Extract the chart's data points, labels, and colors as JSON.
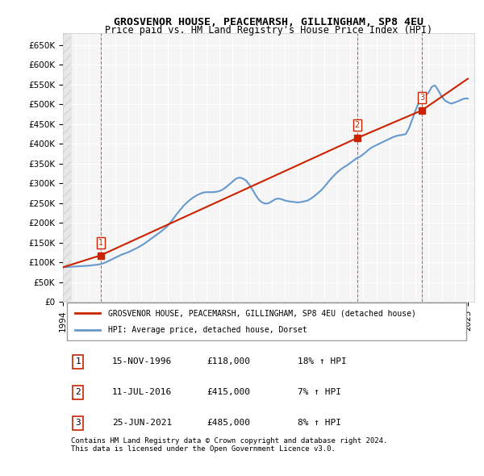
{
  "title": "GROSVENOR HOUSE, PEACEMARSH, GILLINGHAM, SP8 4EU",
  "subtitle": "Price paid vs. HM Land Registry's House Price Index (HPI)",
  "xlabel": "",
  "ylabel": "",
  "ylim": [
    0,
    680000
  ],
  "xlim_start": 1994.0,
  "xlim_end": 2025.5,
  "yticks": [
    0,
    50000,
    100000,
    150000,
    200000,
    250000,
    300000,
    350000,
    400000,
    450000,
    500000,
    550000,
    600000,
    650000
  ],
  "ytick_labels": [
    "£0",
    "£50K",
    "£100K",
    "£150K",
    "£200K",
    "£250K",
    "£300K",
    "£350K",
    "£400K",
    "£450K",
    "£500K",
    "£550K",
    "£600K",
    "£650K"
  ],
  "xticks": [
    1994,
    1995,
    1996,
    1997,
    1998,
    1999,
    2000,
    2001,
    2002,
    2003,
    2004,
    2005,
    2006,
    2007,
    2008,
    2009,
    2010,
    2011,
    2012,
    2013,
    2014,
    2015,
    2016,
    2017,
    2018,
    2019,
    2020,
    2021,
    2022,
    2023,
    2024,
    2025
  ],
  "sale_dates": [
    1996.877,
    2016.527,
    2021.479
  ],
  "sale_prices": [
    118000,
    415000,
    485000
  ],
  "sale_labels": [
    "1",
    "2",
    "3"
  ],
  "hpi_color": "#6699cc",
  "sale_color": "#cc2200",
  "marker_color": "#cc2200",
  "background_plot": "#f5f5f5",
  "grid_color": "#ffffff",
  "legend_label_sale": "GROSVENOR HOUSE, PEACEMARSH, GILLINGHAM, SP8 4EU (detached house)",
  "legend_label_hpi": "HPI: Average price, detached house, Dorset",
  "table_entries": [
    {
      "num": "1",
      "date": "15-NOV-1996",
      "price": "£118,000",
      "hpi": "18% ↑ HPI"
    },
    {
      "num": "2",
      "date": "11-JUL-2016",
      "price": "£415,000",
      "hpi": "7% ↑ HPI"
    },
    {
      "num": "3",
      "date": "25-JUN-2021",
      "price": "£485,000",
      "hpi": "8% ↑ HPI"
    }
  ],
  "footnote": "Contains HM Land Registry data © Crown copyright and database right 2024.\nThis data is licensed under the Open Government Licence v3.0.",
  "hpi_x": [
    1994.0,
    1994.25,
    1994.5,
    1994.75,
    1995.0,
    1995.25,
    1995.5,
    1995.75,
    1996.0,
    1996.25,
    1996.5,
    1996.75,
    1997.0,
    1997.25,
    1997.5,
    1997.75,
    1998.0,
    1998.25,
    1998.5,
    1998.75,
    1999.0,
    1999.25,
    1999.5,
    1999.75,
    2000.0,
    2000.25,
    2000.5,
    2000.75,
    2001.0,
    2001.25,
    2001.5,
    2001.75,
    2002.0,
    2002.25,
    2002.5,
    2002.75,
    2003.0,
    2003.25,
    2003.5,
    2003.75,
    2004.0,
    2004.25,
    2004.5,
    2004.75,
    2005.0,
    2005.25,
    2005.5,
    2005.75,
    2006.0,
    2006.25,
    2006.5,
    2006.75,
    2007.0,
    2007.25,
    2007.5,
    2007.75,
    2008.0,
    2008.25,
    2008.5,
    2008.75,
    2009.0,
    2009.25,
    2009.5,
    2009.75,
    2010.0,
    2010.25,
    2010.5,
    2010.75,
    2011.0,
    2011.25,
    2011.5,
    2011.75,
    2012.0,
    2012.25,
    2012.5,
    2012.75,
    2013.0,
    2013.25,
    2013.5,
    2013.75,
    2014.0,
    2014.25,
    2014.5,
    2014.75,
    2015.0,
    2015.25,
    2015.5,
    2015.75,
    2016.0,
    2016.25,
    2016.5,
    2016.75,
    2017.0,
    2017.25,
    2017.5,
    2017.75,
    2018.0,
    2018.25,
    2018.5,
    2018.75,
    2019.0,
    2019.25,
    2019.5,
    2019.75,
    2020.0,
    2020.25,
    2020.5,
    2020.75,
    2021.0,
    2021.25,
    2021.5,
    2021.75,
    2022.0,
    2022.25,
    2022.5,
    2022.75,
    2023.0,
    2023.25,
    2023.5,
    2023.75,
    2024.0,
    2024.25,
    2024.5,
    2024.75,
    2025.0
  ],
  "hpi_y": [
    88000,
    88500,
    89000,
    89500,
    90000,
    90500,
    91000,
    91500,
    92000,
    93000,
    94000,
    95000,
    97000,
    100000,
    104000,
    108000,
    112000,
    116000,
    120000,
    123000,
    126000,
    130000,
    134000,
    138000,
    143000,
    148000,
    154000,
    160000,
    166000,
    172000,
    178000,
    185000,
    192000,
    202000,
    213000,
    224000,
    234000,
    244000,
    252000,
    259000,
    265000,
    270000,
    274000,
    277000,
    278000,
    278000,
    278000,
    279000,
    281000,
    285000,
    291000,
    298000,
    305000,
    312000,
    315000,
    313000,
    308000,
    298000,
    285000,
    271000,
    259000,
    252000,
    249000,
    250000,
    255000,
    260000,
    262000,
    260000,
    257000,
    255000,
    254000,
    253000,
    252000,
    253000,
    255000,
    257000,
    262000,
    268000,
    275000,
    282000,
    291000,
    301000,
    311000,
    320000,
    328000,
    335000,
    341000,
    346000,
    352000,
    358000,
    364000,
    368000,
    374000,
    381000,
    388000,
    393000,
    397000,
    401000,
    405000,
    409000,
    413000,
    417000,
    420000,
    422000,
    423000,
    425000,
    440000,
    462000,
    485000,
    505000,
    518000,
    522000,
    530000,
    545000,
    548000,
    535000,
    520000,
    510000,
    505000,
    502000,
    505000,
    508000,
    512000,
    515000,
    515000
  ],
  "sale_line_x": [
    1994.0,
    1996.877,
    2016.527,
    2021.479,
    2025.0
  ],
  "sale_line_y": [
    88000,
    118000,
    415000,
    485000,
    565000
  ]
}
